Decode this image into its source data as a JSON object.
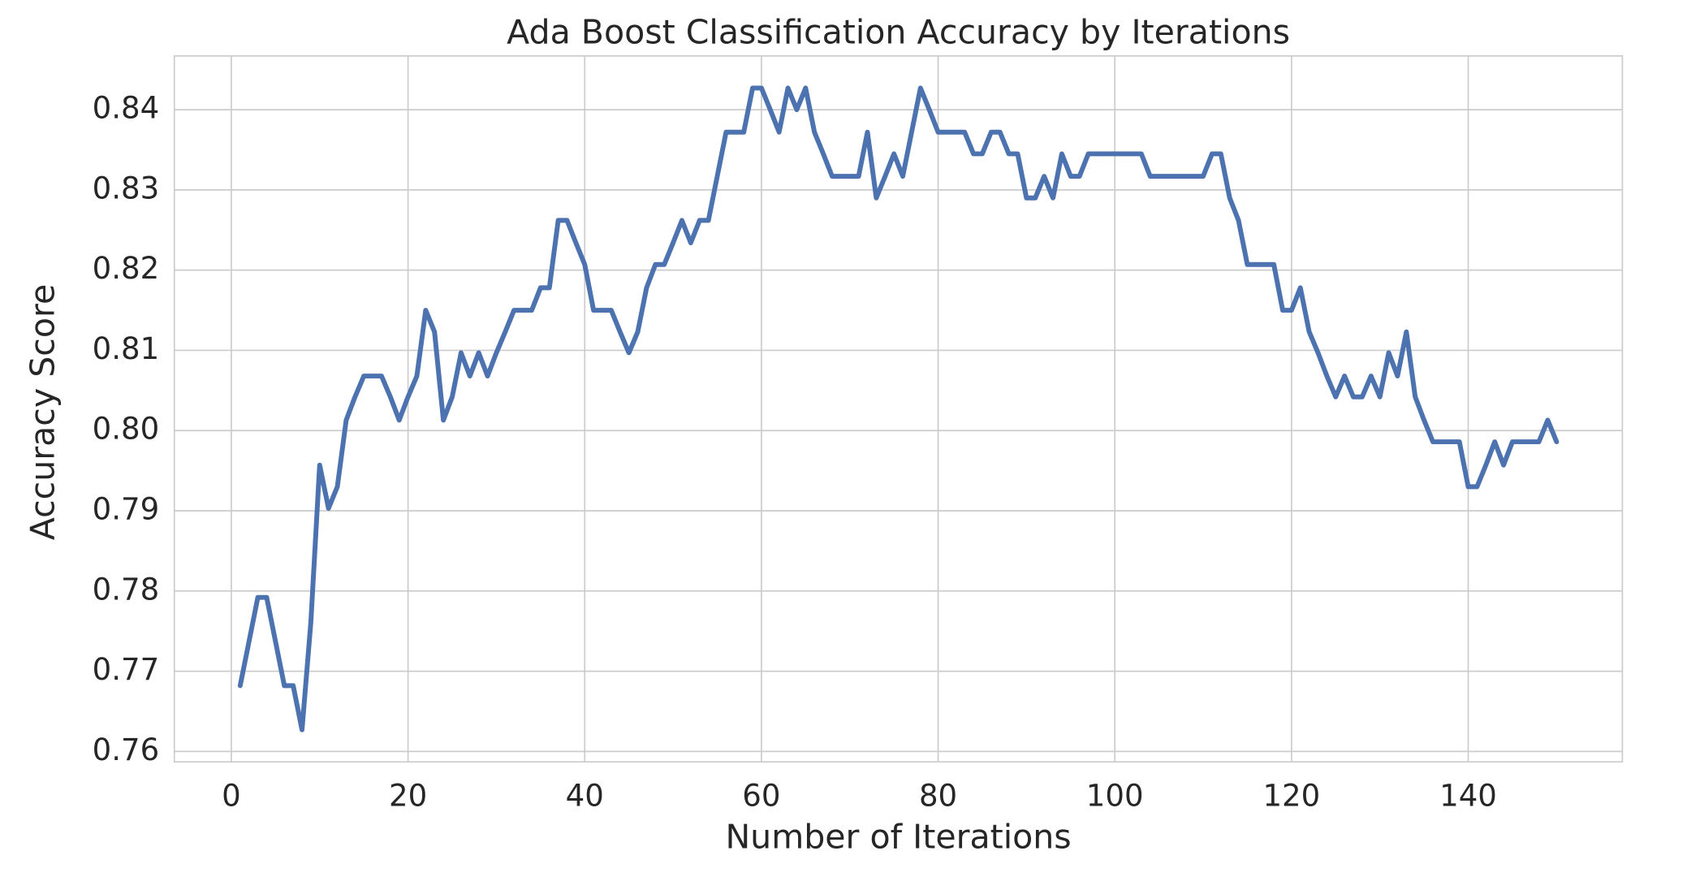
{
  "chart_data": {
    "type": "line",
    "title": "Ada Boost Classification Accuracy by Iterations",
    "x_label": "Number of Iterations",
    "y_label": "Accuracy Score",
    "x": [
      1,
      2,
      3,
      4,
      5,
      6,
      7,
      8,
      9,
      10,
      11,
      12,
      13,
      14,
      15,
      16,
      17,
      18,
      19,
      20,
      21,
      22,
      23,
      24,
      25,
      26,
      27,
      28,
      29,
      30,
      31,
      32,
      33,
      34,
      35,
      36,
      37,
      38,
      39,
      40,
      41,
      42,
      43,
      44,
      45,
      46,
      47,
      48,
      49,
      50,
      51,
      52,
      53,
      54,
      55,
      56,
      57,
      58,
      59,
      60,
      61,
      62,
      63,
      64,
      65,
      66,
      67,
      68,
      69,
      70,
      71,
      72,
      73,
      74,
      75,
      76,
      77,
      78,
      79,
      80,
      81,
      82,
      83,
      84,
      85,
      86,
      87,
      88,
      89,
      90,
      91,
      92,
      93,
      94,
      95,
      96,
      97,
      98,
      99,
      100,
      101,
      102,
      103,
      104,
      105,
      106,
      107,
      108,
      109,
      110,
      111,
      112,
      113,
      114,
      115,
      116,
      117,
      118,
      119,
      120,
      121,
      122,
      123,
      124,
      125,
      126,
      127,
      128,
      129,
      130,
      131,
      132,
      133,
      134,
      135,
      136,
      137,
      138,
      139,
      140,
      141,
      142,
      143,
      144,
      145,
      146,
      147,
      148,
      149,
      150
    ],
    "series": [
      {
        "color": "#4c72b0",
        "values": [
          0.7682,
          0.7737,
          0.7792,
          0.7792,
          0.7737,
          0.7682,
          0.7682,
          0.7627,
          0.7761,
          0.7957,
          0.7903,
          0.793,
          0.8013,
          0.8042,
          0.8068,
          0.8068,
          0.8068,
          0.8042,
          0.8013,
          0.8042,
          0.8068,
          0.815,
          0.8123,
          0.8013,
          0.8042,
          0.8097,
          0.8068,
          0.8097,
          0.8068,
          0.8097,
          0.8123,
          0.815,
          0.815,
          0.815,
          0.8178,
          0.8178,
          0.8262,
          0.8262,
          0.8234,
          0.8207,
          0.815,
          0.815,
          0.815,
          0.8123,
          0.8097,
          0.8123,
          0.8178,
          0.8207,
          0.8207,
          0.8234,
          0.8262,
          0.8234,
          0.8262,
          0.8262,
          0.8317,
          0.8372,
          0.8372,
          0.8372,
          0.8427,
          0.8427,
          0.84,
          0.8372,
          0.8427,
          0.84,
          0.8427,
          0.8372,
          0.8345,
          0.8317,
          0.8317,
          0.8317,
          0.8317,
          0.8372,
          0.829,
          0.8317,
          0.8345,
          0.8317,
          0.8372,
          0.8427,
          0.84,
          0.8372,
          0.8372,
          0.8372,
          0.8372,
          0.8345,
          0.8345,
          0.8372,
          0.8372,
          0.8345,
          0.8345,
          0.829,
          0.829,
          0.8317,
          0.829,
          0.8345,
          0.8317,
          0.8317,
          0.8345,
          0.8345,
          0.8345,
          0.8345,
          0.8345,
          0.8345,
          0.8345,
          0.8317,
          0.8317,
          0.8317,
          0.8317,
          0.8317,
          0.8317,
          0.8317,
          0.8345,
          0.8345,
          0.829,
          0.8262,
          0.8207,
          0.8207,
          0.8207,
          0.8207,
          0.815,
          0.815,
          0.8178,
          0.8123,
          0.8097,
          0.8068,
          0.8042,
          0.8068,
          0.8042,
          0.8042,
          0.8068,
          0.8042,
          0.8097,
          0.8068,
          0.8123,
          0.8042,
          0.8013,
          0.7986,
          0.7986,
          0.7986,
          0.7986,
          0.793,
          0.793,
          0.7957,
          0.7986,
          0.7957,
          0.7986,
          0.7986,
          0.7986,
          0.7986,
          0.8013,
          0.7986
        ]
      }
    ],
    "xlim": [
      -6.45,
      157.45
    ],
    "xticks": [
      0,
      20,
      40,
      60,
      80,
      100,
      120,
      140
    ],
    "ylim": [
      0.7587,
      0.8467
    ],
    "yticks": [
      0.76,
      0.77,
      0.78,
      0.79,
      {
        "value": 0.8,
        "label": "0.80"
      },
      0.81,
      0.82,
      0.83,
      0.84
    ],
    "grid": true
  }
}
